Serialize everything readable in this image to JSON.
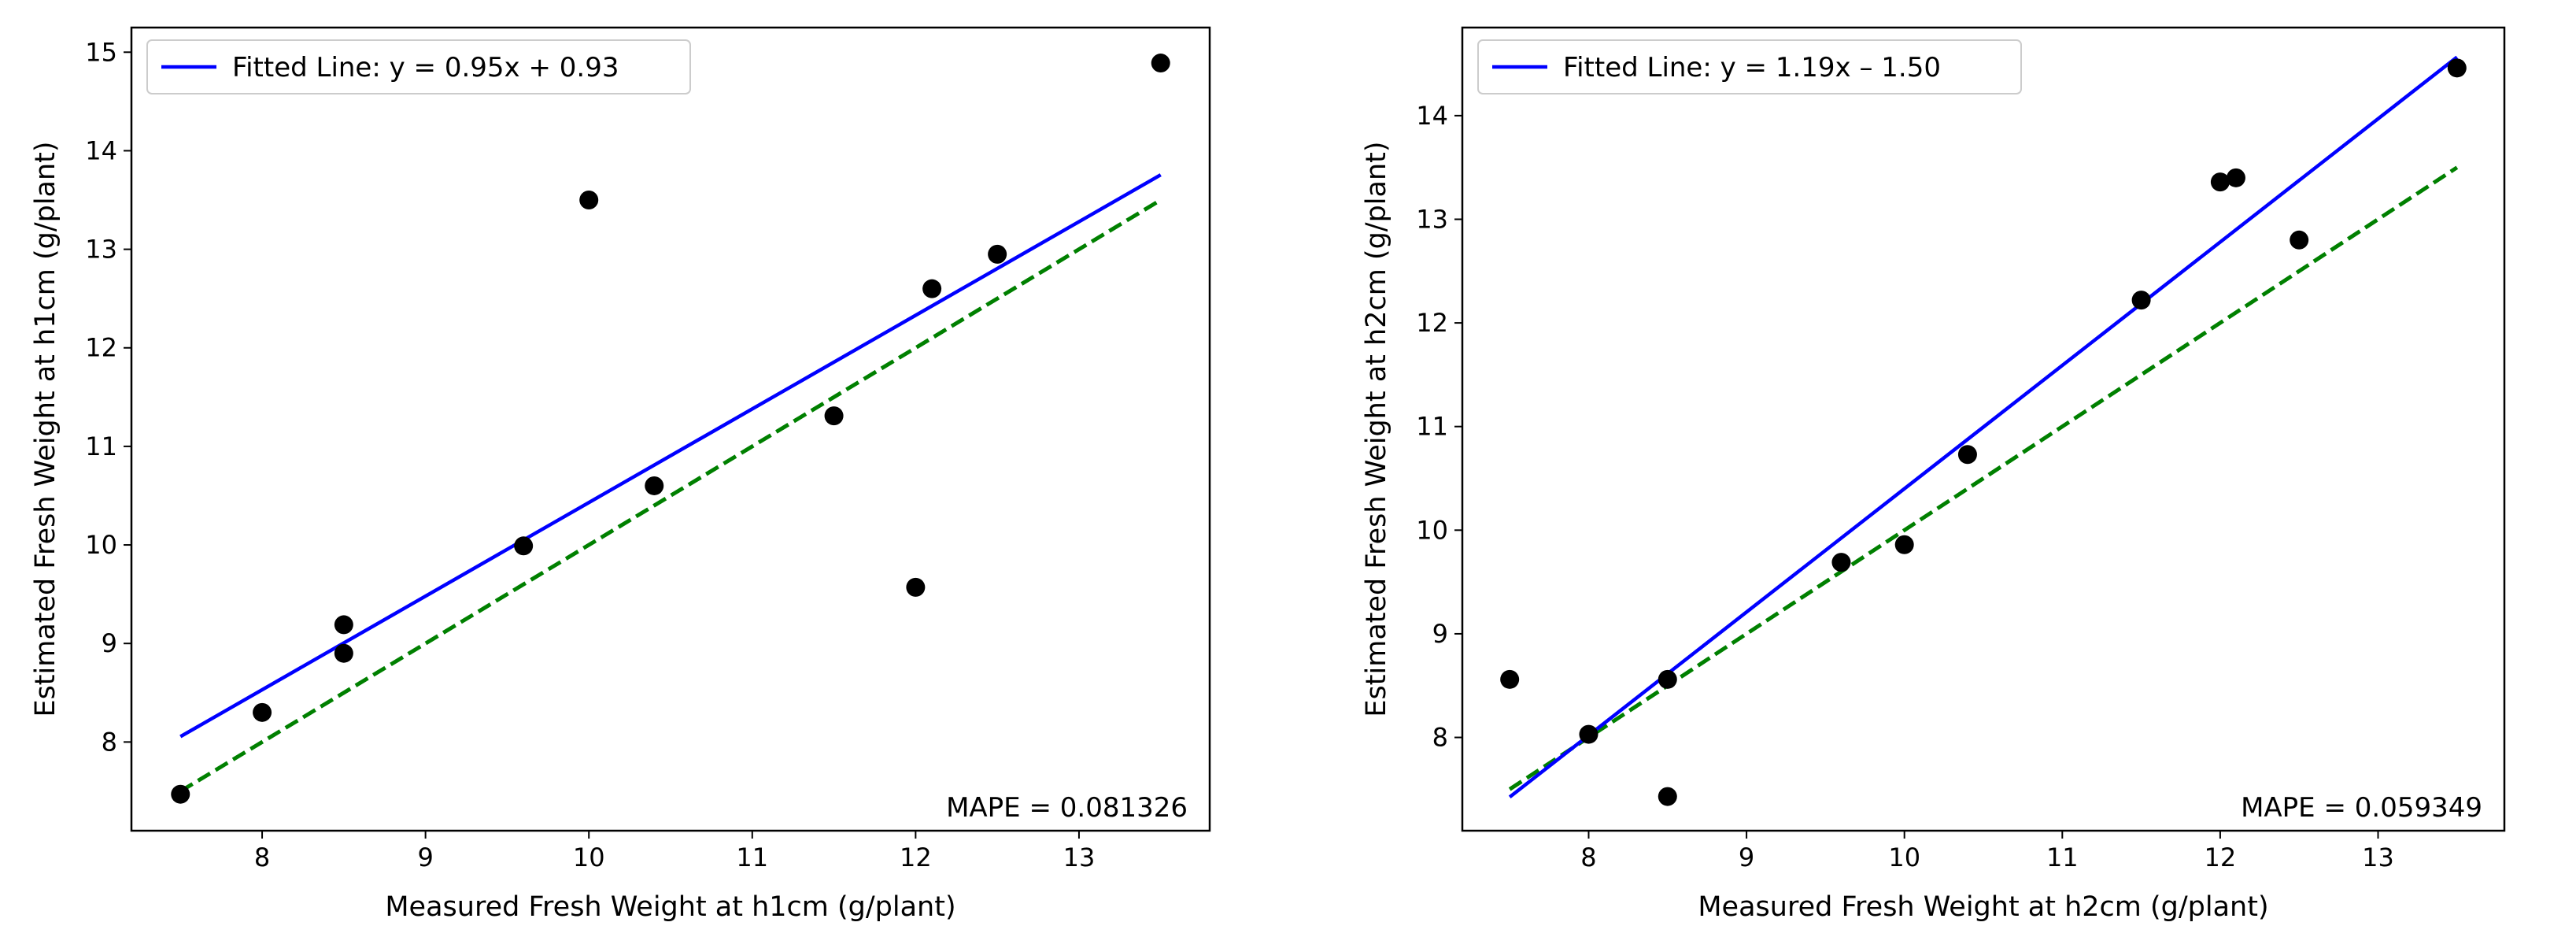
{
  "colors": {
    "fit_line": "#0000ff",
    "identity_line": "#008000",
    "points": "#000000",
    "axes": "#000000",
    "legend_border": "#cccccc"
  },
  "chart_data": [
    {
      "type": "scatter",
      "xlabel": "Measured Fresh Weight at h1cm (g/plant)",
      "ylabel": "Estimated Fresh Weight at h1cm (g/plant)",
      "xlim": [
        7.2,
        13.8
      ],
      "ylim": [
        7.1,
        15.25
      ],
      "xticks": [
        8,
        9,
        10,
        11,
        12,
        13
      ],
      "yticks": [
        8,
        9,
        10,
        11,
        12,
        13,
        14,
        15
      ],
      "legend": {
        "label": "Fitted Line: y = 0.95x + 0.93",
        "position": "top-left"
      },
      "annotation": "MAPE = 0.081326",
      "fit_line": {
        "slope": 0.95,
        "intercept": 0.93,
        "x_range": [
          7.5,
          13.5
        ]
      },
      "identity_line": {
        "x_range": [
          7.5,
          13.5
        ]
      },
      "points": [
        {
          "x": 7.5,
          "y": 7.47
        },
        {
          "x": 8.0,
          "y": 8.3
        },
        {
          "x": 8.5,
          "y": 9.19
        },
        {
          "x": 8.5,
          "y": 8.9
        },
        {
          "x": 9.6,
          "y": 9.99
        },
        {
          "x": 10.0,
          "y": 13.5
        },
        {
          "x": 10.4,
          "y": 10.6
        },
        {
          "x": 11.5,
          "y": 11.31
        },
        {
          "x": 12.0,
          "y": 9.57
        },
        {
          "x": 12.1,
          "y": 12.6
        },
        {
          "x": 12.5,
          "y": 12.95
        },
        {
          "x": 13.5,
          "y": 14.89
        }
      ]
    },
    {
      "type": "scatter",
      "xlabel": "Measured Fresh Weight at h2cm (g/plant)",
      "ylabel": "Estimated Fresh Weight at h2cm (g/plant)",
      "xlim": [
        7.2,
        13.8
      ],
      "ylim": [
        7.1,
        14.85
      ],
      "xticks": [
        8,
        9,
        10,
        11,
        12,
        13
      ],
      "yticks": [
        8,
        9,
        10,
        11,
        12,
        13,
        14
      ],
      "legend": {
        "label": "Fitted Line: y = 1.19x  – 1.50",
        "position": "top-left"
      },
      "annotation": "MAPE = 0.059349",
      "fit_line": {
        "slope": 1.19,
        "intercept": -1.5,
        "x_range": [
          7.5,
          13.5
        ]
      },
      "identity_line": {
        "x_range": [
          7.5,
          13.5
        ]
      },
      "points": [
        {
          "x": 7.5,
          "y": 8.56
        },
        {
          "x": 8.0,
          "y": 8.03
        },
        {
          "x": 8.5,
          "y": 8.56
        },
        {
          "x": 8.5,
          "y": 7.43
        },
        {
          "x": 9.6,
          "y": 9.69
        },
        {
          "x": 10.0,
          "y": 9.86
        },
        {
          "x": 10.4,
          "y": 10.73
        },
        {
          "x": 11.5,
          "y": 12.22
        },
        {
          "x": 12.0,
          "y": 13.36
        },
        {
          "x": 12.1,
          "y": 13.4
        },
        {
          "x": 12.5,
          "y": 12.8
        },
        {
          "x": 13.5,
          "y": 14.46
        }
      ]
    }
  ]
}
